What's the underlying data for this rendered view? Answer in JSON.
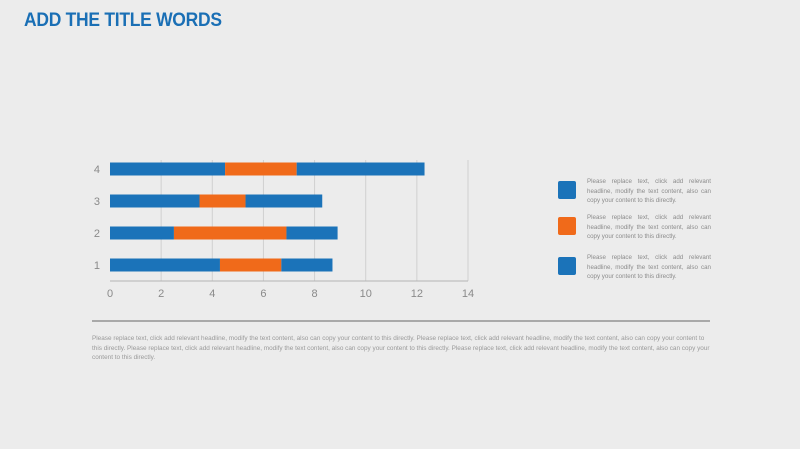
{
  "title": "ADD THE TITLE WORDS",
  "colors": {
    "blue": "#1b73b9",
    "orange": "#f06a1a"
  },
  "chart_data": {
    "type": "bar",
    "orientation": "horizontal",
    "stacked": true,
    "categories": [
      "1",
      "2",
      "3",
      "4"
    ],
    "series": [
      {
        "values": [
          4.3,
          2.5,
          3.5,
          4.5
        ],
        "color": "#1b73b9"
      },
      {
        "values": [
          2.4,
          4.4,
          1.8,
          2.8
        ],
        "color": "#f06a1a"
      },
      {
        "values": [
          2.0,
          2.0,
          3.0,
          5.0
        ],
        "color": "#1b73b9"
      }
    ],
    "xlim": [
      0,
      14
    ],
    "xticks": [
      0,
      2,
      4,
      6,
      8,
      10,
      12,
      14
    ],
    "grid": "vertical",
    "legend": "right"
  },
  "legend": [
    {
      "color": "#1b73b9",
      "text": "Please replace text, click add relevant headline, modify the text content, also can copy your content to this directly."
    },
    {
      "color": "#f06a1a",
      "text": "Please replace text, click add relevant headline, modify the text content, also can copy your content to this directly."
    },
    {
      "color": "#1b73b9",
      "text": "Please replace text, click add relevant headline, modify the text content, also can copy your content to this directly."
    }
  ],
  "body_text": "Please replace text, click add relevant headline, modify the text content, also can copy your content to this directly. Please replace text, click add relevant headline, modify the text content, also can copy your content to this directly. Please replace text, click add relevant headline, modify the text content, also can copy your content to this directly. Please replace text, click add relevant headline, modify the text content, also can copy your content to this directly."
}
